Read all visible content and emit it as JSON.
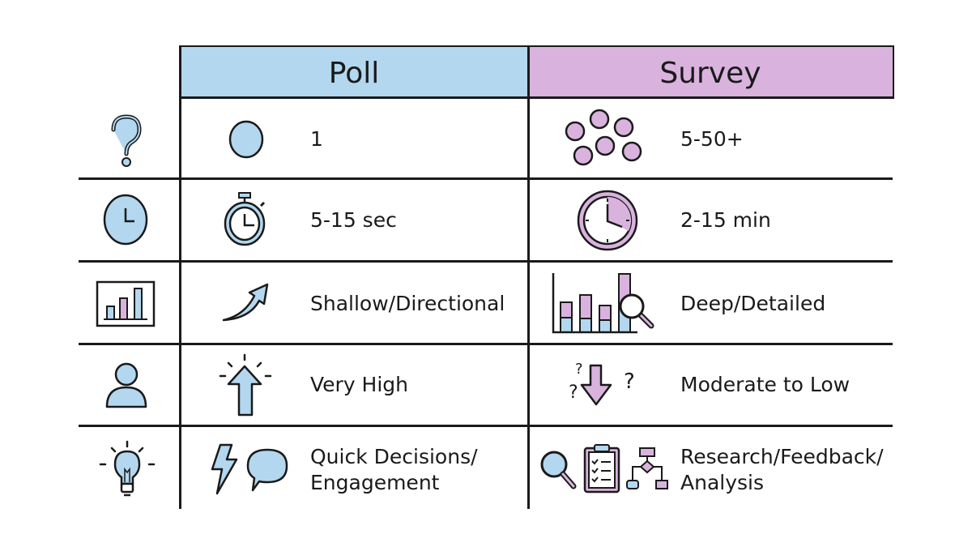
{
  "columns": {
    "poll": "Poll",
    "survey": "Survey"
  },
  "colors": {
    "poll": "#b3d7ef",
    "survey": "#d9b3de",
    "line": "#1a1a1a"
  },
  "rows": [
    {
      "row_icon": "question-mark-icon",
      "poll_icon": "single-circle-icon",
      "poll": "1",
      "survey_icon": "multiple-circles-icon",
      "survey": "5-50+"
    },
    {
      "row_icon": "clock-icon",
      "poll_icon": "stopwatch-icon",
      "poll": "5-15 sec",
      "survey_icon": "clock-icon",
      "survey": "2-15 min"
    },
    {
      "row_icon": "bar-chart-icon",
      "poll_icon": "trend-arrow-icon",
      "poll": "Shallow/Directional",
      "survey_icon": "stacked-bar-magnifier-icon",
      "survey": "Deep/Detailed"
    },
    {
      "row_icon": "person-icon",
      "poll_icon": "up-arrow-burst-icon",
      "poll": "Very High",
      "survey_icon": "down-arrow-questions-icon",
      "survey": "Moderate to Low"
    },
    {
      "row_icon": "lightbulb-icon",
      "poll_icon": "lightning-speech-icon",
      "poll": "Quick Decisions/\nEngagement",
      "poll_lines": [
        "Quick Decisions/",
        "Engagement"
      ],
      "survey_icon": "magnifier-clipboard-flowchart-icon",
      "survey_lines": [
        "Research/Feedback/",
        "Analysis"
      ]
    }
  ]
}
